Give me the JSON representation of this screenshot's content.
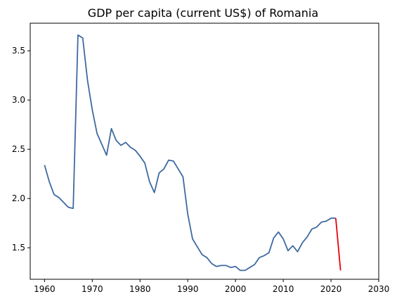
{
  "chart_data": {
    "type": "line",
    "title": "GDP per capita (current US$) of Romania",
    "xlabel": "",
    "ylabel": "",
    "xlim": [
      1957,
      2030
    ],
    "ylim": [
      1.18,
      3.78
    ],
    "x_ticks": [
      1960,
      1970,
      1980,
      1990,
      2000,
      2010,
      2020,
      2030
    ],
    "y_ticks": [
      1.5,
      2.0,
      2.5,
      3.0,
      3.5
    ],
    "x_tick_labels": [
      "1960",
      "1970",
      "1980",
      "1990",
      "2000",
      "2010",
      "2020",
      "2030"
    ],
    "y_tick_labels": [
      "1.5",
      "2.0",
      "2.5",
      "3.0",
      "3.5"
    ],
    "grid": false,
    "series": [
      {
        "color": "#3e6aa0",
        "x": [
          1960,
          1961,
          1962,
          1963,
          1964,
          1965,
          1966,
          1967,
          1968,
          1969,
          1970,
          1971,
          1972,
          1973,
          1974,
          1975,
          1976,
          1977,
          1978,
          1979,
          1980,
          1981,
          1982,
          1983,
          1984,
          1985,
          1986,
          1987,
          1988,
          1989,
          1990,
          1991,
          1992,
          1993,
          1994,
          1995,
          1996,
          1997,
          1998,
          1999,
          2000,
          2001,
          2002,
          2003,
          2004,
          2005,
          2006,
          2007,
          2008,
          2009,
          2010,
          2011,
          2012,
          2013,
          2014,
          2015,
          2016,
          2017,
          2018,
          2019,
          2020,
          2021
        ],
        "y": [
          2.34,
          2.17,
          2.04,
          2.01,
          1.96,
          1.91,
          1.9,
          3.66,
          3.63,
          3.2,
          2.9,
          2.66,
          2.55,
          2.44,
          2.71,
          2.59,
          2.54,
          2.57,
          2.52,
          2.49,
          2.43,
          2.36,
          2.17,
          2.06,
          2.26,
          2.3,
          2.39,
          2.38,
          2.3,
          2.22,
          1.84,
          1.59,
          1.51,
          1.43,
          1.4,
          1.34,
          1.31,
          1.32,
          1.32,
          1.3,
          1.31,
          1.27,
          1.27,
          1.3,
          1.33,
          1.4,
          1.42,
          1.45,
          1.6,
          1.66,
          1.59,
          1.47,
          1.52,
          1.46,
          1.55,
          1.61,
          1.69,
          1.71,
          1.76,
          1.77,
          1.8,
          1.8
        ]
      },
      {
        "color": "#e8000b",
        "x": [
          2021,
          2022
        ],
        "y": [
          1.8,
          1.27
        ]
      }
    ]
  }
}
